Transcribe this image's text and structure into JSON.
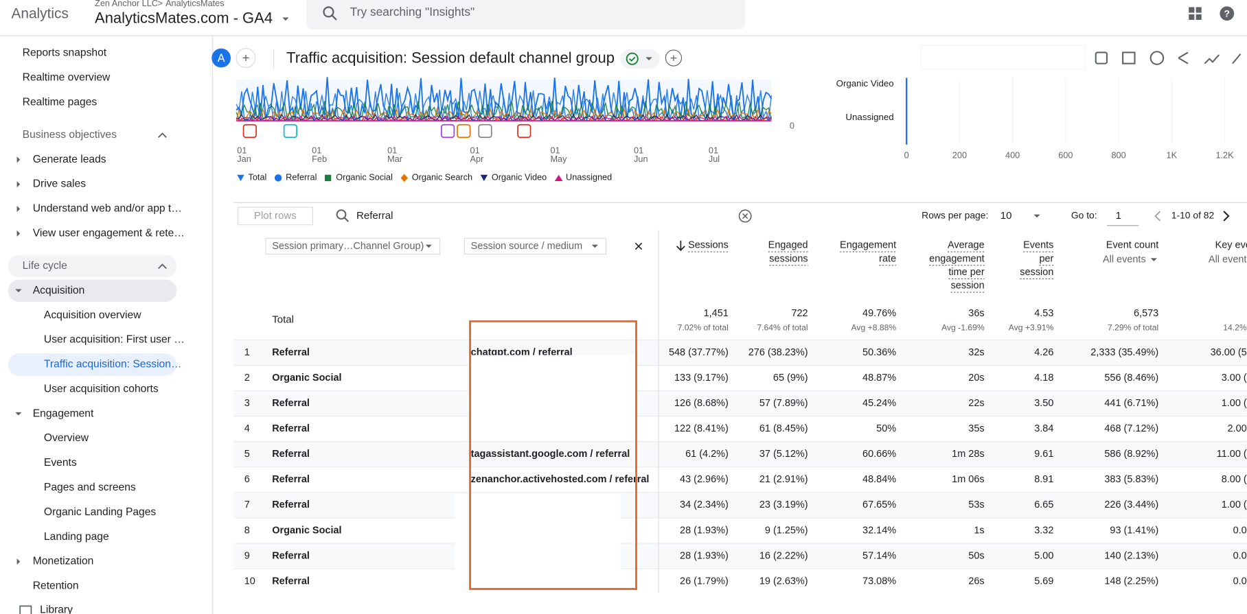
{
  "header": {
    "product": "Analytics",
    "account": "Zen Anchor LLC",
    "property_parent": "AnalyticsMates",
    "property": "AnalyticsMates.com - GA4",
    "search_placeholder": "Try searching \"Insights\""
  },
  "sidebar": [
    "Reports snapshot",
    "Realtime overview",
    "Realtime pages",
    "Business objectives",
    "Generate leads",
    "Drive sales",
    "Understand web and/or app t…",
    "View user engagement & rete…",
    "Life cycle",
    "Acquisition",
    "Acquisition overview",
    "User acquisition: First user …",
    "Traffic acquisition: Session…",
    "User acquisition cohorts",
    "Engagement",
    "Overview",
    "Events",
    "Pages and screens",
    "Organic Landing Pages",
    "Landing page",
    "Monetization",
    "Retention",
    "Library"
  ],
  "report": {
    "avatar": "A",
    "title": "Traffic acquisition: Session default channel group"
  },
  "line_chart": {
    "y_label": "0",
    "x_labels": [
      {
        "day": "01",
        "month": "Jan"
      },
      {
        "day": "01",
        "month": "Feb"
      },
      {
        "day": "01",
        "month": "Mar"
      },
      {
        "day": "01",
        "month": "Apr"
      },
      {
        "day": "01",
        "month": "May"
      },
      {
        "day": "01",
        "month": "Jun"
      },
      {
        "day": "01",
        "month": "Jul"
      }
    ],
    "legend": [
      "Total",
      "Referral",
      "Organic Social",
      "Organic Search",
      "Organic Video",
      "Unassigned"
    ]
  },
  "bar_chart": {
    "categories": [
      "Organic Video",
      "Unassigned"
    ],
    "xticks": [
      "0",
      "200",
      "400",
      "600",
      "800",
      "1K",
      "1.2K"
    ]
  },
  "toolbar": {
    "plot_rows": "Plot rows",
    "search": "Referral",
    "rows_per_page_label": "Rows per page:",
    "rows_per_page": "10",
    "goto_label": "Go to:",
    "goto": "1",
    "range": "1-10 of 82"
  },
  "table": {
    "dimensions": [
      "Session primary…Channel Group)",
      "Session source / medium"
    ],
    "columns": [
      {
        "label": [
          "Sessions"
        ]
      },
      {
        "label": [
          "Engaged",
          "sessions"
        ]
      },
      {
        "label": [
          "Engagement",
          "rate"
        ]
      },
      {
        "label": [
          "Average",
          "engagement",
          "time per",
          "session"
        ]
      },
      {
        "label": [
          "Events",
          "per",
          "session"
        ]
      },
      {
        "label": [
          "Event count"
        ],
        "sub": "All events"
      },
      {
        "label": [
          "Key events"
        ],
        "sub": "All events"
      }
    ],
    "totals": {
      "label": "Total",
      "cells": [
        {
          "value": "1,451",
          "sub": "7.02% of total"
        },
        {
          "value": "722",
          "sub": "7.64% of total"
        },
        {
          "value": "49.76%",
          "sub": "Avg +8.88%"
        },
        {
          "value": "36s",
          "sub": "Avg -1.69%"
        },
        {
          "value": "4.53",
          "sub": "Avg +3.91%"
        },
        {
          "value": "6,573",
          "sub": "7.29% of total"
        },
        {
          "sub": "14.2%"
        }
      ]
    },
    "rows": [
      {
        "n": "1",
        "channel": "Referral",
        "source": "chatgpt.com / referral",
        "cells": [
          "548 (37.77%)",
          "276 (38.23%)",
          "50.36%",
          "32s",
          "4.26",
          "2,333 (35.49%)",
          "36.00 (5"
        ]
      },
      {
        "n": "2",
        "channel": "Organic Social",
        "cells": [
          "133 (9.17%)",
          "65 (9%)",
          "48.87%",
          "20s",
          "4.18",
          "556 (8.46%)",
          "3.00 ("
        ]
      },
      {
        "n": "3",
        "channel": "Referral",
        "cells": [
          "126 (8.68%)",
          "57 (7.89%)",
          "45.24%",
          "22s",
          "3.50",
          "441 (6.71%)",
          "1.00 ("
        ]
      },
      {
        "n": "4",
        "channel": "Referral",
        "cells": [
          "122 (8.41%)",
          "61 (8.45%)",
          "50%",
          "35s",
          "3.84",
          "468 (7.12%)",
          "2.00"
        ]
      },
      {
        "n": "5",
        "channel": "Referral",
        "source": "tagassistant.google.com / referral",
        "cells": [
          "61 (4.2%)",
          "37 (5.12%)",
          "60.66%",
          "1m 28s",
          "9.61",
          "586 (8.92%)",
          "11.00 ("
        ]
      },
      {
        "n": "6",
        "channel": "Referral",
        "source": "zenanchor.activehosted.com / referral",
        "cells": [
          "43 (2.96%)",
          "21 (2.91%)",
          "48.84%",
          "1m 06s",
          "8.91",
          "383 (5.83%)",
          "8.00 ("
        ]
      },
      {
        "n": "7",
        "channel": "Referral",
        "cells": [
          "34 (2.34%)",
          "23 (3.19%)",
          "67.65%",
          "53s",
          "6.65",
          "226 (3.44%)",
          "1.00 ("
        ]
      },
      {
        "n": "8",
        "channel": "Organic Social",
        "cells": [
          "28 (1.93%)",
          "9 (1.25%)",
          "32.14%",
          "1s",
          "3.32",
          "93 (1.41%)",
          "0.0"
        ]
      },
      {
        "n": "9",
        "channel": "Referral",
        "cells": [
          "28 (1.93%)",
          "16 (2.22%)",
          "57.14%",
          "50s",
          "5.00",
          "140 (2.13%)",
          "0.0"
        ]
      },
      {
        "n": "10",
        "channel": "Referral",
        "cells": [
          "26 (1.79%)",
          "19 (2.63%)",
          "73.08%",
          "26s",
          "5.69",
          "148 (2.25%)",
          "0.0"
        ]
      }
    ]
  }
}
